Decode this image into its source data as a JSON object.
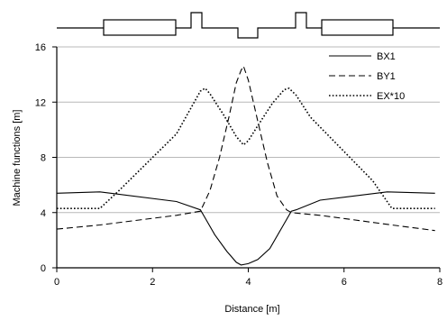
{
  "chart_data": {
    "type": "line",
    "xlabel": "Distance  [m]",
    "ylabel": "Machine functions  [m]",
    "xlim": [
      0,
      8
    ],
    "ylim": [
      0,
      16
    ],
    "x_ticks": [
      0,
      2,
      4,
      6,
      8
    ],
    "x_tick_labels": [
      "0",
      "2",
      "4",
      "6",
      "8"
    ],
    "y_ticks": [
      0,
      4,
      8,
      12,
      16
    ],
    "y_tick_labels": [
      "0",
      "4",
      "8",
      "12",
      "16"
    ],
    "grid": "horizontal",
    "legend_position": "top-right",
    "series": [
      {
        "name": "BX1",
        "style": "solid",
        "color": "#000000",
        "x": [
          0.0,
          0.9,
          2.5,
          3.0,
          3.1,
          3.3,
          3.55,
          3.75,
          3.85,
          4.0,
          4.2,
          4.45,
          4.7,
          4.9,
          5.0,
          5.5,
          6.9,
          7.9
        ],
        "y": [
          5.4,
          5.5,
          4.8,
          4.2,
          3.6,
          2.4,
          1.2,
          0.4,
          0.2,
          0.3,
          0.6,
          1.4,
          2.9,
          4.1,
          4.2,
          4.9,
          5.5,
          5.4
        ]
      },
      {
        "name": "BY1",
        "style": "dashed",
        "color": "#000000",
        "x": [
          0.0,
          0.9,
          2.5,
          3.0,
          3.2,
          3.4,
          3.6,
          3.75,
          3.85,
          3.9,
          4.0,
          4.2,
          4.4,
          4.6,
          4.8,
          4.9,
          5.5,
          7.0,
          7.9
        ],
        "y": [
          2.8,
          3.1,
          3.8,
          4.1,
          5.6,
          8.0,
          11.0,
          13.4,
          14.3,
          14.6,
          13.6,
          10.6,
          7.6,
          5.2,
          4.2,
          4.0,
          3.8,
          3.1,
          2.7
        ]
      },
      {
        "name": "EX*10",
        "style": "dotted",
        "color": "#000000",
        "x": [
          0.0,
          0.9,
          1.3,
          2.5,
          3.0,
          3.1,
          3.2,
          3.5,
          3.75,
          3.9,
          4.0,
          4.2,
          4.5,
          4.75,
          4.85,
          5.0,
          5.3,
          6.6,
          7.0,
          7.9
        ],
        "y": [
          4.3,
          4.3,
          5.6,
          9.7,
          12.8,
          13.0,
          12.6,
          11.0,
          9.5,
          8.9,
          9.2,
          10.3,
          11.9,
          12.9,
          13.0,
          12.5,
          10.9,
          6.3,
          4.3,
          4.3
        ]
      }
    ]
  },
  "lattice_diagram": {
    "elements": [
      "baseline",
      "quadrupole",
      "dipole",
      "bump",
      "dip",
      "bump",
      "dipole",
      "quadrupole"
    ]
  }
}
